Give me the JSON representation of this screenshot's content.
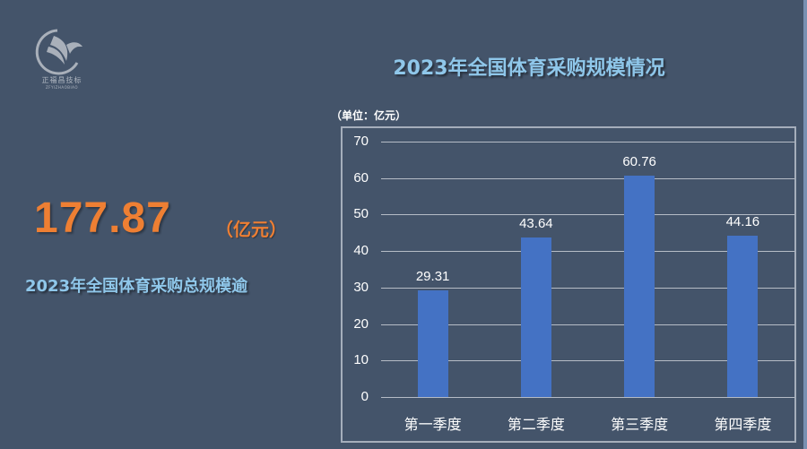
{
  "logo": {
    "icon": "eagle-circle-logo-icon",
    "name_cn": "正福昌技标",
    "name_en": "ZFYIZHAOBIAO"
  },
  "headline": {
    "value": "177.87",
    "unit": "（亿元）",
    "caption": "2023年全国体育采购总规模逾"
  },
  "chart": {
    "title": "2023年全国体育采购规模情况",
    "unit_label": "（单位：亿元）"
  },
  "colors": {
    "background": "#44546a",
    "bar": "#4472c4",
    "headline": "#ee7f33",
    "title": "#8fc7ea"
  },
  "chart_data": {
    "type": "bar",
    "title": "2023年全国体育采购规模情况",
    "xlabel": "",
    "ylabel": "（单位：亿元）",
    "categories": [
      "第一季度",
      "第二季度",
      "第三季度",
      "第四季度"
    ],
    "values": [
      29.31,
      43.64,
      60.76,
      44.16
    ],
    "data_labels": [
      "29.31",
      "43.64",
      "60.76",
      "44.16"
    ],
    "ylim": [
      0,
      70
    ],
    "yticks": [
      0,
      10,
      20,
      30,
      40,
      50,
      60,
      70
    ],
    "ytick_labels": [
      "0",
      "10",
      "20",
      "30",
      "40",
      "50",
      "60",
      "70"
    ],
    "grid": true,
    "legend": null
  }
}
